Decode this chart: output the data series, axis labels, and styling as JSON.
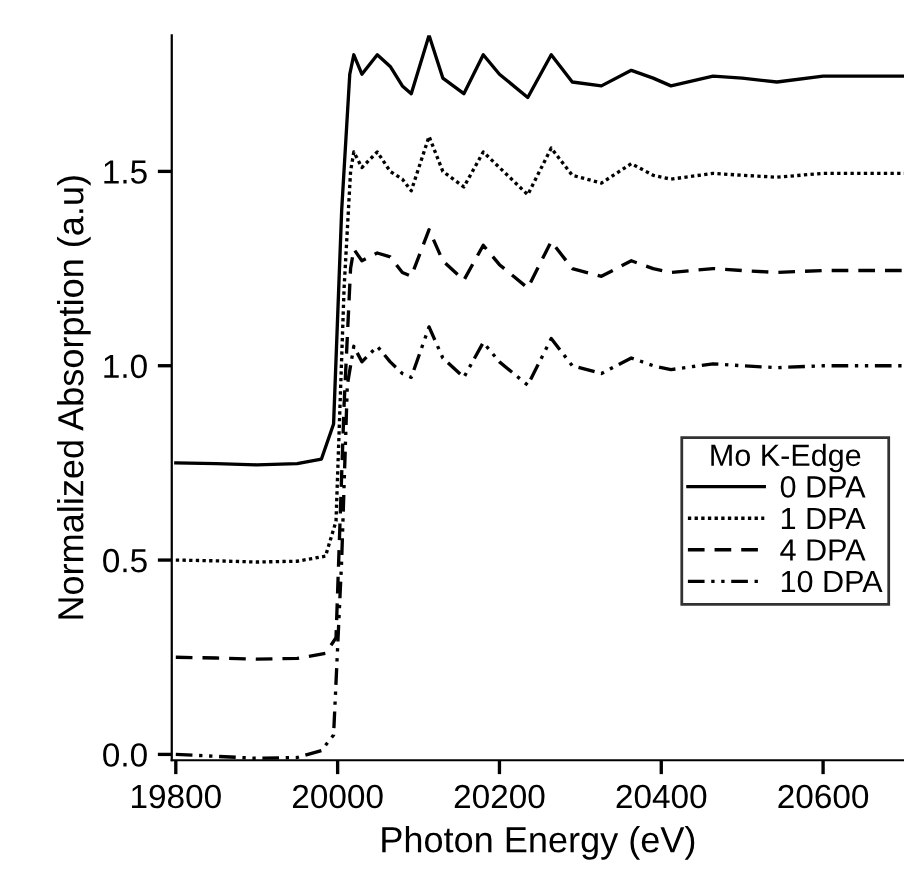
{
  "chart_data": {
    "type": "line",
    "xlabel": "Photon Energy (eV)",
    "ylabel": "Normalized Absorption (a.u)",
    "legend_title": "Mo K-Edge",
    "legend": "right",
    "grid": false,
    "marker": "none",
    "xlim": [
      19795,
      20700
    ],
    "ylim": [
      -0.015,
      1.85
    ],
    "xticks": [
      19800,
      20000,
      20200,
      20400,
      20600
    ],
    "yticks": [
      {
        "value": 0,
        "label": "0.0"
      },
      {
        "value": 0.5,
        "label": "0.5"
      },
      {
        "value": 1,
        "label": "1.0"
      },
      {
        "value": 1.5,
        "label": "1.5"
      }
    ],
    "series": [
      {
        "name": "0 DPA",
        "color": "#000000",
        "line_style": "solid",
        "x": [
          19800,
          19850,
          19900,
          19950,
          19980,
          19995,
          20005,
          20015,
          20020,
          20030,
          20049,
          20065,
          20080,
          20091,
          20113,
          20130,
          20156,
          20180,
          20200,
          20235,
          20264,
          20290,
          20326,
          20363,
          20390,
          20412,
          20464,
          20500,
          20543,
          20600,
          20700
        ],
        "values": [
          0.75,
          0.748,
          0.745,
          0.748,
          0.76,
          0.85,
          1.4,
          1.75,
          1.8,
          1.75,
          1.8,
          1.77,
          1.72,
          1.7,
          1.85,
          1.74,
          1.7,
          1.8,
          1.75,
          1.69,
          1.8,
          1.73,
          1.72,
          1.76,
          1.74,
          1.72,
          1.745,
          1.74,
          1.73,
          1.745,
          1.745
        ]
      },
      {
        "name": "1 DPA",
        "color": "#000000",
        "line_style": "dotted",
        "x": [
          19800,
          19850,
          19900,
          19950,
          19985,
          19998,
          20008,
          20016,
          20020,
          20030,
          20049,
          20065,
          20080,
          20091,
          20113,
          20130,
          20156,
          20180,
          20200,
          20235,
          20264,
          20290,
          20326,
          20363,
          20390,
          20412,
          20464,
          20500,
          20543,
          20600,
          20700
        ],
        "values": [
          0.5,
          0.498,
          0.495,
          0.497,
          0.51,
          0.6,
          1.2,
          1.5,
          1.55,
          1.51,
          1.55,
          1.5,
          1.48,
          1.45,
          1.59,
          1.5,
          1.46,
          1.55,
          1.51,
          1.44,
          1.56,
          1.49,
          1.47,
          1.52,
          1.49,
          1.48,
          1.495,
          1.49,
          1.485,
          1.495,
          1.495
        ]
      },
      {
        "name": "4 DPA",
        "color": "#000000",
        "line_style": "dashed",
        "x": [
          19800,
          19850,
          19900,
          19950,
          19985,
          19998,
          20008,
          20016,
          20020,
          20030,
          20049,
          20065,
          20080,
          20091,
          20113,
          20130,
          20156,
          20180,
          20200,
          20235,
          20264,
          20290,
          20326,
          20363,
          20390,
          20412,
          20464,
          20500,
          20543,
          20600,
          20700
        ],
        "values": [
          0.25,
          0.248,
          0.245,
          0.247,
          0.26,
          0.3,
          0.9,
          1.25,
          1.3,
          1.27,
          1.29,
          1.28,
          1.24,
          1.23,
          1.35,
          1.27,
          1.22,
          1.31,
          1.26,
          1.2,
          1.32,
          1.25,
          1.23,
          1.27,
          1.25,
          1.24,
          1.25,
          1.245,
          1.24,
          1.245,
          1.245
        ]
      },
      {
        "name": "10 DPA",
        "color": "#000000",
        "line_style": "dashdot",
        "x": [
          19800,
          19850,
          19900,
          19950,
          19980,
          19995,
          20005,
          20012,
          20020,
          20030,
          20049,
          20065,
          20080,
          20091,
          20113,
          20130,
          20156,
          20180,
          20200,
          20235,
          20264,
          20290,
          20326,
          20363,
          20390,
          20412,
          20464,
          20500,
          20543,
          20600,
          20700
        ],
        "values": [
          0.0,
          -0.005,
          -0.01,
          -0.008,
          0.01,
          0.05,
          0.5,
          0.95,
          1.05,
          1.01,
          1.05,
          1.01,
          0.98,
          0.97,
          1.1,
          1.02,
          0.97,
          1.06,
          1.01,
          0.95,
          1.07,
          1.0,
          0.98,
          1.02,
          1.0,
          0.99,
          1.005,
          1.0,
          0.995,
          1.0,
          1.0
        ]
      }
    ]
  }
}
